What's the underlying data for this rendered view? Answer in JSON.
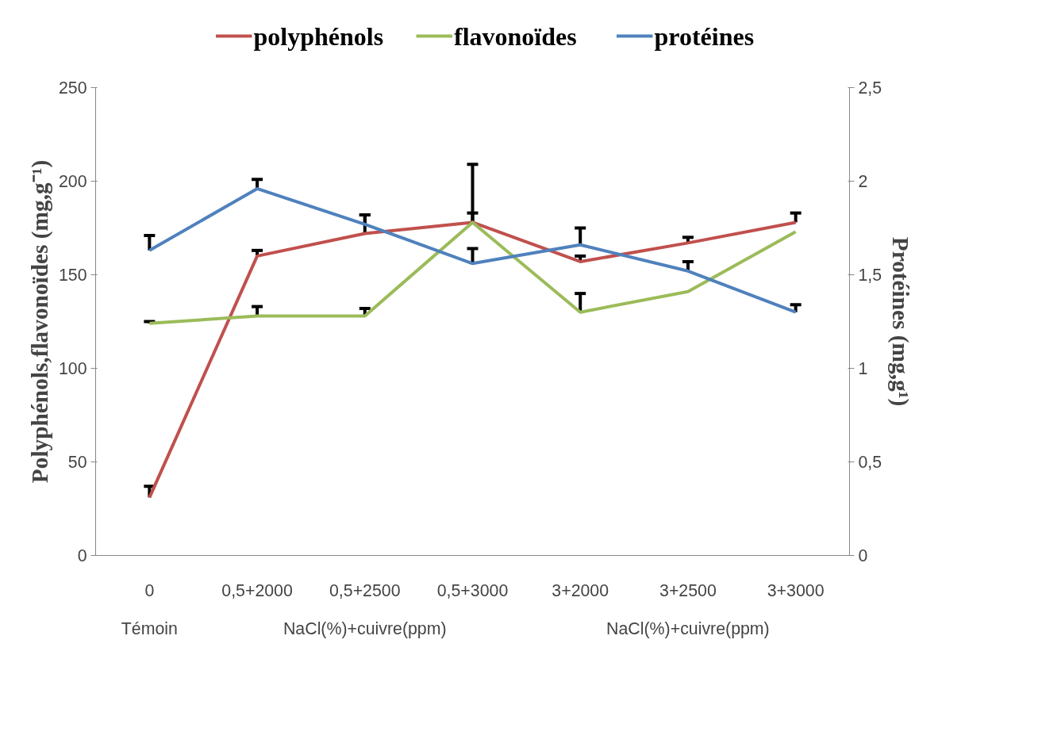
{
  "chart_data": {
    "type": "line",
    "categories": [
      "0",
      "0,5+2000",
      "0,5+2500",
      "0,5+3000",
      "3+2000",
      "3+2500",
      "3+3000"
    ],
    "series": [
      {
        "name": "polyphénols",
        "color": "#c0504d",
        "values": [
          31,
          160,
          172,
          178,
          157,
          167,
          178
        ],
        "errors": [
          [
            31,
            37
          ],
          [
            160,
            163
          ],
          [
            172,
            182
          ],
          [
            178,
            183
          ],
          [
            157,
            160
          ],
          [
            167,
            170
          ],
          [
            178,
            183
          ]
        ]
      },
      {
        "name": "flavonoïdes",
        "color": "#9bbb59",
        "values": [
          124,
          128,
          128,
          178,
          130,
          141,
          173
        ],
        "errors": [
          [
            124,
            125
          ],
          [
            128,
            133
          ],
          [
            128,
            132
          ],
          [
            178,
            209
          ],
          [
            130,
            140
          ],
          null,
          null
        ]
      },
      {
        "name": "protéines",
        "color": "#4f81bd",
        "axis": "y2",
        "values": [
          1.63,
          1.96,
          1.77,
          1.56,
          1.66,
          1.52,
          1.3
        ],
        "errors": [
          [
            1.63,
            1.71
          ],
          [
            1.96,
            2.01
          ],
          [
            1.77,
            1.82
          ],
          [
            1.56,
            1.64
          ],
          [
            1.66,
            1.75
          ],
          [
            1.52,
            1.57
          ],
          [
            1.3,
            1.34
          ]
        ]
      }
    ],
    "ylabel": "Polyphénols,flavonoïdes (mg,g⁻¹)",
    "y2label": "Protéines (mg,g¹)",
    "ylim": [
      0,
      250
    ],
    "yticks": [
      0,
      50,
      100,
      150,
      200,
      250
    ],
    "y2lim": [
      0,
      2.5
    ],
    "y2ticks": [
      0,
      {
        "value": 0.5,
        "label": "0,5"
      },
      1,
      {
        "value": 1.5,
        "label": "1,5"
      },
      2,
      {
        "value": 2.5,
        "label": "2,5"
      }
    ],
    "annotations": [
      "Témoin",
      "NaCl(%)+cuivre(ppm)",
      "NaCl(%)+cuivre(ppm)"
    ],
    "legend": "top",
    "grid": false,
    "marker": "none",
    "line_style": "solid"
  }
}
